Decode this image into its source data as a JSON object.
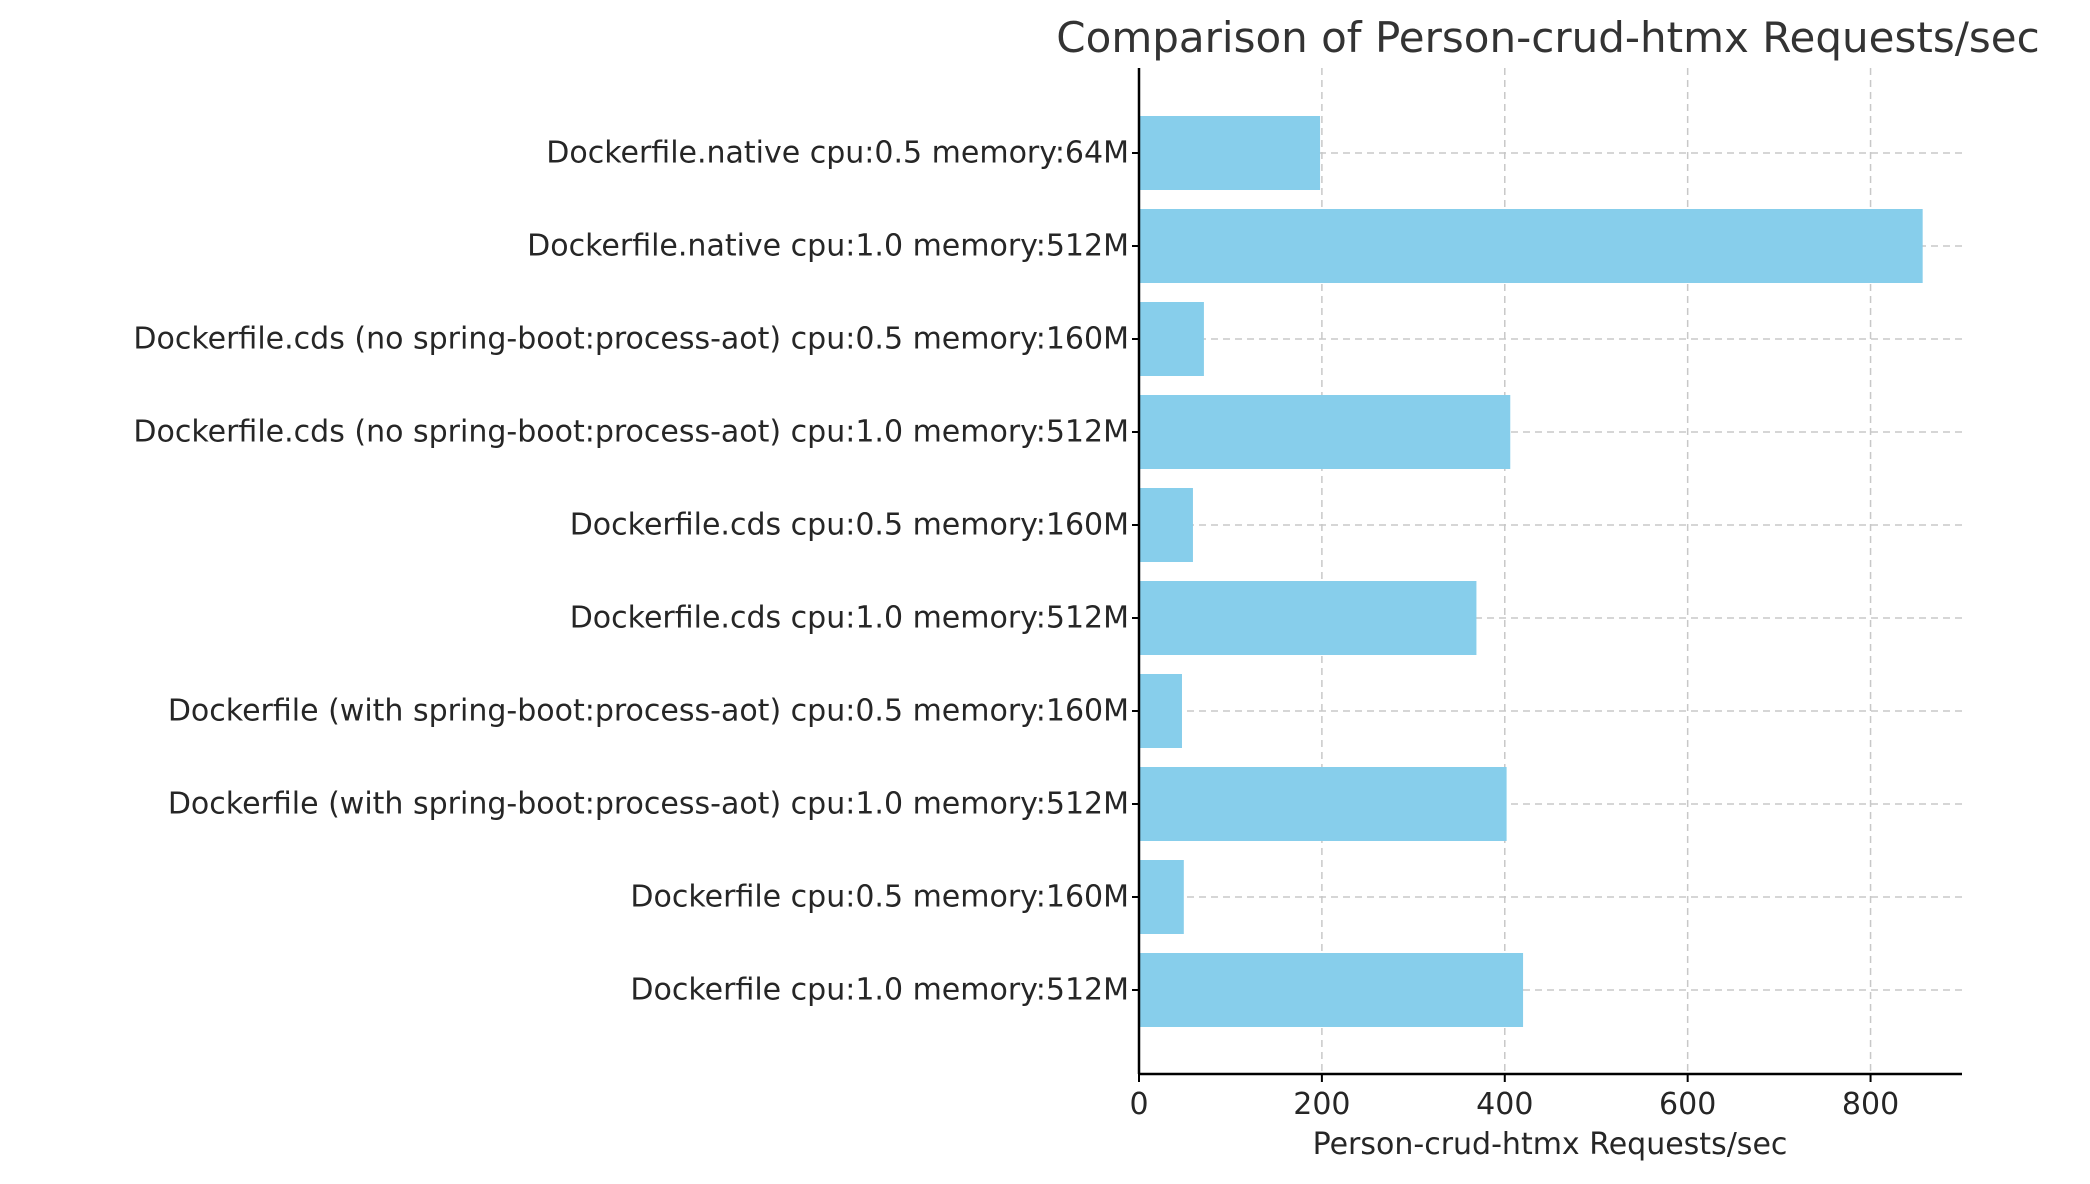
{
  "chart_data": {
    "type": "bar",
    "orientation": "horizontal",
    "title": "Comparison of Person-crud-htmx Requests/sec",
    "xlabel": "Person-crud-htmx Requests/sec",
    "ylabel": "",
    "xlim": [
      0,
      900
    ],
    "xticks": [
      0,
      200,
      400,
      600,
      800
    ],
    "grid": true,
    "bar_color": "#87CEEB",
    "categories": [
      "Dockerfile.native cpu:0.5 memory:64M",
      "Dockerfile.native cpu:1.0 memory:512M",
      "Dockerfile.cds (no spring-boot:process-aot) cpu:0.5 memory:160M",
      "Dockerfile.cds (no spring-boot:process-aot) cpu:1.0 memory:512M",
      "Dockerfile.cds cpu:0.5 memory:160M",
      "Dockerfile.cds cpu:1.0 memory:512M",
      "Dockerfile (with spring-boot:process-aot) cpu:0.5 memory:160M",
      "Dockerfile (with spring-boot:process-aot) cpu:1.0 memory:512M",
      "Dockerfile cpu:0.5 memory:160M",
      "Dockerfile cpu:1.0 memory:512M"
    ],
    "values": [
      198,
      857,
      71,
      406,
      59,
      369,
      47,
      402,
      49,
      420
    ]
  }
}
